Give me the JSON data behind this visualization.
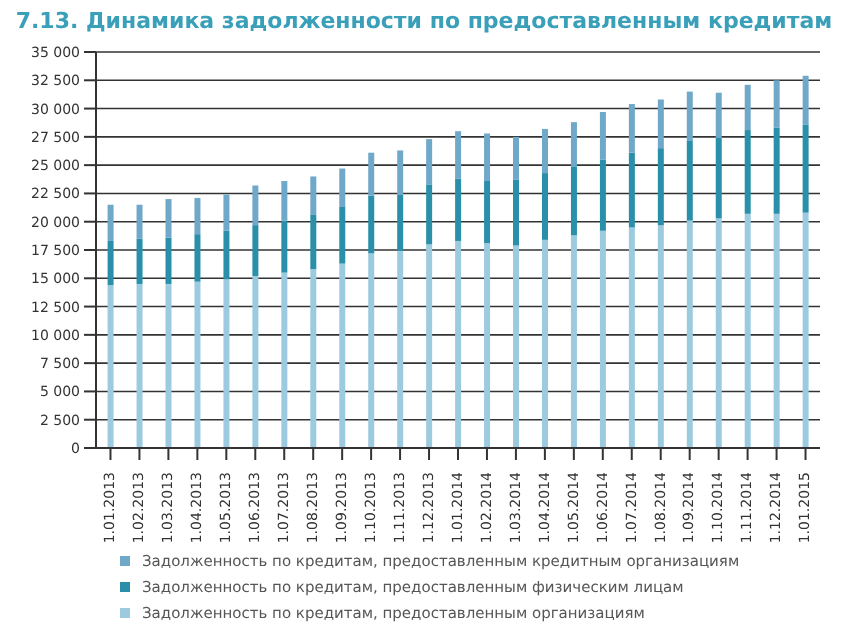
{
  "chart_data": {
    "type": "bar",
    "title": "7.13. Динамика задолженности по предоставленным кредитам",
    "stacked": true,
    "grid": "y",
    "legend": "bottom",
    "categories": [
      "1.01.2013",
      "1.02.2013",
      "1.03.2013",
      "1.04.2013",
      "1.05.2013",
      "1.06.2013",
      "1.07.2013",
      "1.08.2013",
      "1.09.2013",
      "1.10.2013",
      "1.11.2013",
      "1.12.2013",
      "1.01.2014",
      "1.02.2014",
      "1.03.2014",
      "1.04.2014",
      "1.05.2014",
      "1.06.2014",
      "1.07.2014",
      "1.08.2014",
      "1.09.2014",
      "1.10.2014",
      "1.11.2014",
      "1.12.2014",
      "1.01.2015"
    ],
    "series": [
      {
        "name": "Задолженность по кредитам, предоставленным организациям",
        "color": "#9ccbe0",
        "values": [
          14400,
          14500,
          14500,
          14700,
          14900,
          15200,
          15500,
          15800,
          16300,
          17200,
          17400,
          18000,
          18300,
          18100,
          17900,
          18400,
          18800,
          19200,
          19500,
          19700,
          20100,
          20300,
          20700,
          20700,
          20800
        ]
      },
      {
        "name": "Задолженность по кредитам, предоставленным физическим лицам",
        "color": "#2a8fa8",
        "values": [
          3900,
          4000,
          4100,
          4200,
          4300,
          4500,
          4600,
          4800,
          5000,
          5100,
          5000,
          5300,
          5500,
          5500,
          5800,
          5900,
          6100,
          6300,
          6600,
          6800,
          7100,
          7100,
          7400,
          7600,
          7800
        ]
      },
      {
        "name": "Задолженность по кредитам, предоставленным кредитным организациям",
        "color": "#6fa8c8",
        "values": [
          3200,
          3000,
          3400,
          3200,
          3200,
          3500,
          3500,
          3400,
          3400,
          3800,
          3900,
          4000,
          4200,
          4200,
          3800,
          3900,
          3900,
          4200,
          4300,
          4300,
          4300,
          4000,
          4000,
          4200,
          4300
        ]
      }
    ],
    "ylim": [
      0,
      35000
    ],
    "yticks": [
      {
        "value": 0,
        "label": "0"
      },
      {
        "value": 2500,
        "label": "2 500"
      },
      {
        "value": 5000,
        "label": "5 000"
      },
      {
        "value": 7500,
        "label": "7 500"
      },
      {
        "value": 10000,
        "label": "10 000"
      },
      {
        "value": 12500,
        "label": "12 500"
      },
      {
        "value": 15000,
        "label": "15 000"
      },
      {
        "value": 17500,
        "label": "17 500"
      },
      {
        "value": 20000,
        "label": "20 000"
      },
      {
        "value": 22500,
        "label": "22 500"
      },
      {
        "value": 25000,
        "label": "25 000"
      },
      {
        "value": 27500,
        "label": "27 500"
      },
      {
        "value": 30000,
        "label": "30 000"
      },
      {
        "value": 32500,
        "label": "32 500"
      },
      {
        "value": 35000,
        "label": "35 000"
      }
    ]
  }
}
